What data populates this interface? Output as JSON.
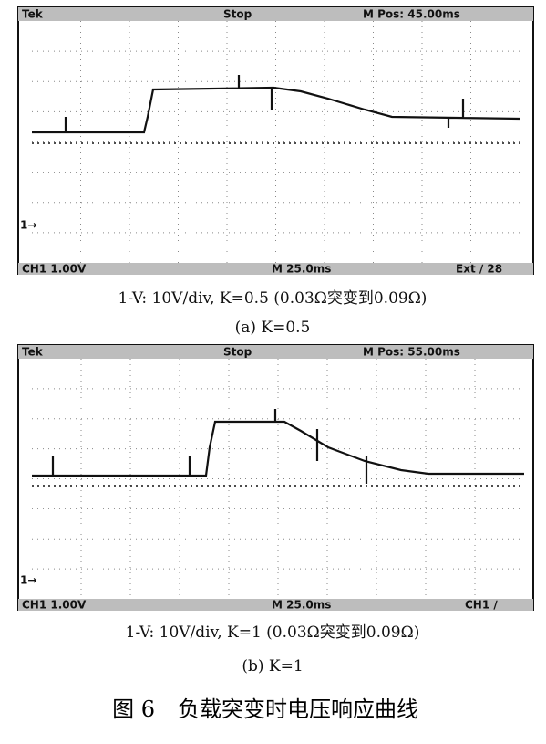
{
  "panels": [
    {
      "header": {
        "brand": "Tek",
        "state": "Stop",
        "position": "M Pos: 45.00ms"
      },
      "footer": {
        "channel": "CH1 1.00V",
        "timebase": "M 25.0ms",
        "trigger": "Ext ∕ 28"
      },
      "marker": "1→",
      "caption": "1-V: 10V/div, K=0.5 (0.03Ω突变到0.09Ω)",
      "label": "(a) K=0.5"
    },
    {
      "header": {
        "brand": "Tek",
        "state": "Stop",
        "position": "M Pos: 55.00ms"
      },
      "footer": {
        "channel": "CH1 1.00V",
        "timebase": "M 25.0ms",
        "trigger": "CH1 ∕"
      },
      "marker": "1→",
      "caption": "1-V: 10V/div, K=1 (0.03Ω突变到0.09Ω)",
      "label": "(b) K=1"
    }
  ],
  "figure": {
    "number": "图 6",
    "title": "负载突变时电压响应曲线"
  }
}
